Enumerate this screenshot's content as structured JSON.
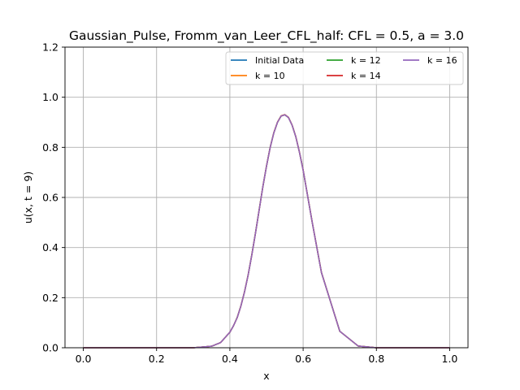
{
  "chart_data": {
    "type": "line",
    "title": "Gaussian_Pulse, Fromm_van_Leer_CFL_half: CFL = 0.5, a = 3.0",
    "xlabel": "x",
    "ylabel": "u(x, t = 9)",
    "xlim": [
      -0.05,
      1.05
    ],
    "ylim": [
      0.0,
      1.2
    ],
    "xticks": [
      "0.0",
      "0.2",
      "0.4",
      "0.6",
      "0.8",
      "1.0"
    ],
    "yticks": [
      "0.0",
      "0.2",
      "0.4",
      "0.6",
      "0.8",
      "1.0",
      "1.2"
    ],
    "grid": true,
    "legend_position": "top-right",
    "legend_columns": 3,
    "x": [
      0.0,
      0.05,
      0.1,
      0.15,
      0.2,
      0.25,
      0.3,
      0.35,
      0.375,
      0.4,
      0.41,
      0.42,
      0.43,
      0.44,
      0.45,
      0.46,
      0.47,
      0.48,
      0.49,
      0.5,
      0.51,
      0.52,
      0.53,
      0.54,
      0.55,
      0.56,
      0.57,
      0.58,
      0.59,
      0.6,
      0.625,
      0.65,
      0.7,
      0.75,
      0.8,
      0.85,
      0.9,
      0.95,
      1.0
    ],
    "series": [
      {
        "name": "Initial Data",
        "color": "#1f77b4",
        "values": [
          0.0,
          0.0,
          0.0,
          0.0,
          0.0,
          0.0,
          0.0,
          0.006,
          0.021,
          0.062,
          0.088,
          0.12,
          0.166,
          0.223,
          0.291,
          0.371,
          0.458,
          0.55,
          0.642,
          0.725,
          0.799,
          0.858,
          0.9,
          0.925,
          0.93,
          0.919,
          0.888,
          0.842,
          0.78,
          0.709,
          0.499,
          0.3,
          0.066,
          0.007,
          0.0,
          0.0,
          0.0,
          0.0,
          0.0
        ]
      },
      {
        "name": "k = 10",
        "color": "#ff7f0e",
        "values": [
          0.0,
          0.0,
          0.0,
          0.0,
          0.0,
          0.0,
          0.0,
          0.006,
          0.021,
          0.062,
          0.088,
          0.121,
          0.167,
          0.224,
          0.292,
          0.372,
          0.459,
          0.551,
          0.643,
          0.726,
          0.8,
          0.859,
          0.901,
          0.926,
          0.931,
          0.92,
          0.889,
          0.843,
          0.781,
          0.71,
          0.5,
          0.301,
          0.066,
          0.007,
          0.0,
          0.0,
          0.0,
          0.0,
          0.0
        ]
      },
      {
        "name": "k = 12",
        "color": "#2ca02c",
        "values": [
          0.0,
          0.0,
          0.0,
          0.0,
          0.0,
          0.0,
          0.0,
          0.006,
          0.021,
          0.062,
          0.088,
          0.121,
          0.166,
          0.223,
          0.291,
          0.372,
          0.459,
          0.551,
          0.642,
          0.725,
          0.8,
          0.858,
          0.9,
          0.925,
          0.93,
          0.919,
          0.888,
          0.842,
          0.78,
          0.709,
          0.499,
          0.3,
          0.066,
          0.007,
          0.0,
          0.0,
          0.0,
          0.0,
          0.0
        ]
      },
      {
        "name": "k = 14",
        "color": "#d62728",
        "values": [
          0.0,
          0.0,
          0.0,
          0.0,
          0.0,
          0.0,
          0.0,
          0.006,
          0.021,
          0.062,
          0.088,
          0.12,
          0.166,
          0.223,
          0.291,
          0.371,
          0.458,
          0.55,
          0.642,
          0.725,
          0.799,
          0.858,
          0.9,
          0.925,
          0.93,
          0.919,
          0.888,
          0.842,
          0.78,
          0.709,
          0.499,
          0.3,
          0.066,
          0.007,
          0.0,
          0.0,
          0.0,
          0.0,
          0.0
        ]
      },
      {
        "name": "k = 16",
        "color": "#9467bd",
        "values": [
          0.0,
          0.0,
          0.0,
          0.0,
          0.0,
          0.0,
          0.0,
          0.006,
          0.021,
          0.062,
          0.088,
          0.12,
          0.166,
          0.223,
          0.291,
          0.371,
          0.458,
          0.55,
          0.642,
          0.725,
          0.799,
          0.858,
          0.9,
          0.925,
          0.93,
          0.919,
          0.888,
          0.842,
          0.78,
          0.709,
          0.499,
          0.3,
          0.066,
          0.007,
          0.0,
          0.0,
          0.0,
          0.0,
          0.0
        ]
      }
    ]
  }
}
